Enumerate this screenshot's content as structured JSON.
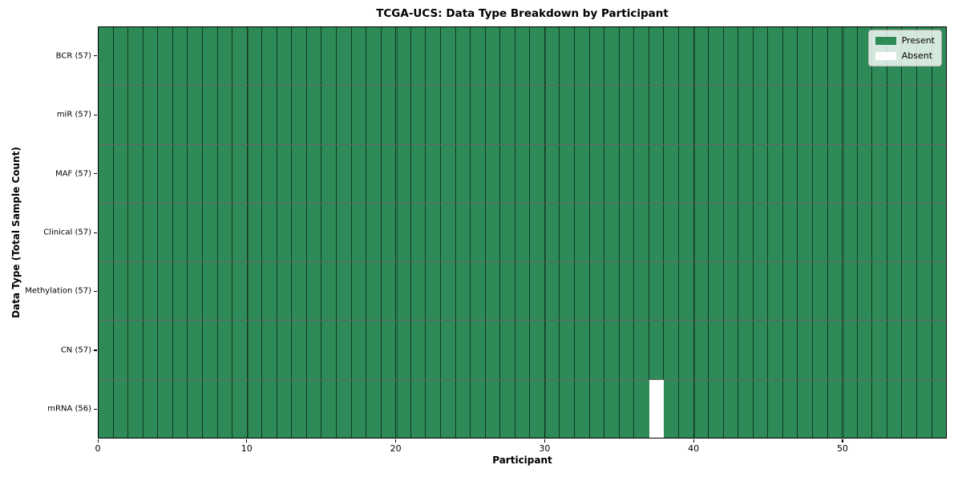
{
  "figure": {
    "title": "TCGA-UCS: Data Type Breakdown by Participant",
    "x_axis_label": "Participant",
    "y_axis_label": "Data Type (Total Sample Count)"
  },
  "legend": {
    "items": [
      {
        "label": "Present",
        "color": "#2E8B57"
      },
      {
        "label": "Absent",
        "color": "#FFFFFF"
      }
    ]
  },
  "chart_data": {
    "type": "heatmap",
    "title": "TCGA-UCS: Data Type Breakdown by Participant",
    "xlabel": "Participant",
    "ylabel": "Data Type (Total Sample Count)",
    "x_ticks": [
      0,
      10,
      20,
      30,
      40,
      50
    ],
    "x_range": [
      0,
      57
    ],
    "n_participants": 57,
    "grid": "vertical-at-x-ticks",
    "legend_position": "upper-right",
    "present_color": "#2E8B57",
    "absent_color": "#FFFFFF",
    "cell_edge_color": "rgba(0,0,0,0.6)",
    "rows": [
      {
        "label": "BCR (57)",
        "data_type": "BCR",
        "count": 57,
        "absent_participants": []
      },
      {
        "label": "miR (57)",
        "data_type": "miR",
        "count": 57,
        "absent_participants": []
      },
      {
        "label": "MAF (57)",
        "data_type": "MAF",
        "count": 57,
        "absent_participants": []
      },
      {
        "label": "Clinical (57)",
        "data_type": "Clinical",
        "count": 57,
        "absent_participants": []
      },
      {
        "label": "Methylation (57)",
        "data_type": "Methylation",
        "count": 57,
        "absent_participants": []
      },
      {
        "label": "CN (57)",
        "data_type": "CN",
        "count": 57,
        "absent_participants": []
      },
      {
        "label": "mRNA (56)",
        "data_type": "mRNA",
        "count": 56,
        "absent_participants": [
          37
        ]
      }
    ]
  }
}
